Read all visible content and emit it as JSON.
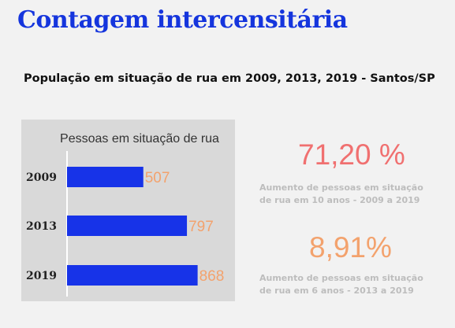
{
  "header": {
    "title": "Contagem intercensitária",
    "subtitle": "População em situação de rua em 2009, 2013, 2019 - Santos/SP"
  },
  "chart_data": {
    "type": "bar",
    "orientation": "horizontal",
    "title": "Pessoas em situação de rua",
    "categories": [
      "2009",
      "2013",
      "2019"
    ],
    "values": [
      507,
      797,
      868
    ],
    "value_labels": [
      "507",
      "797",
      "868"
    ],
    "xlim": [
      0,
      1000
    ],
    "bar_color": "#1733e8",
    "label_color": "#f3a26d",
    "background_color": "#d9d9d9",
    "grid": false
  },
  "stats": [
    {
      "value": "71,20 %",
      "line1": "Aumento de pessoas em situação",
      "line2": "de rua em 10 anos - 2009 a 2019",
      "color": "#f07070"
    },
    {
      "value": "8,91%",
      "line1": "Aumento de pessoas em situação",
      "line2": "de rua em 6 anos - 2013 a 2019",
      "color": "#f3a26d"
    }
  ]
}
